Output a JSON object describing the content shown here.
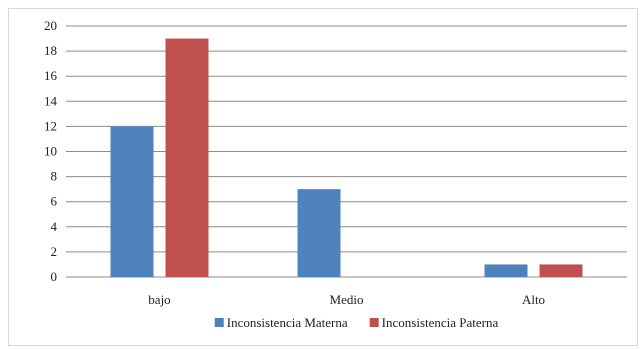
{
  "chart_data": {
    "type": "bar",
    "categories": [
      "bajo",
      "Medio",
      "Alto"
    ],
    "series": [
      {
        "name": "Inconsistencia Materna",
        "values": [
          12,
          7,
          1
        ],
        "color": "#4f81bd"
      },
      {
        "name": "Inconsistencia Paterna",
        "values": [
          19,
          0,
          1
        ],
        "color": "#c0504d"
      }
    ],
    "title": "",
    "xlabel": "",
    "ylabel": "",
    "ylim": [
      0,
      20
    ],
    "yticks": [
      0,
      2,
      4,
      6,
      8,
      10,
      12,
      14,
      16,
      18,
      20
    ],
    "grid": true,
    "legend_position": "bottom"
  }
}
